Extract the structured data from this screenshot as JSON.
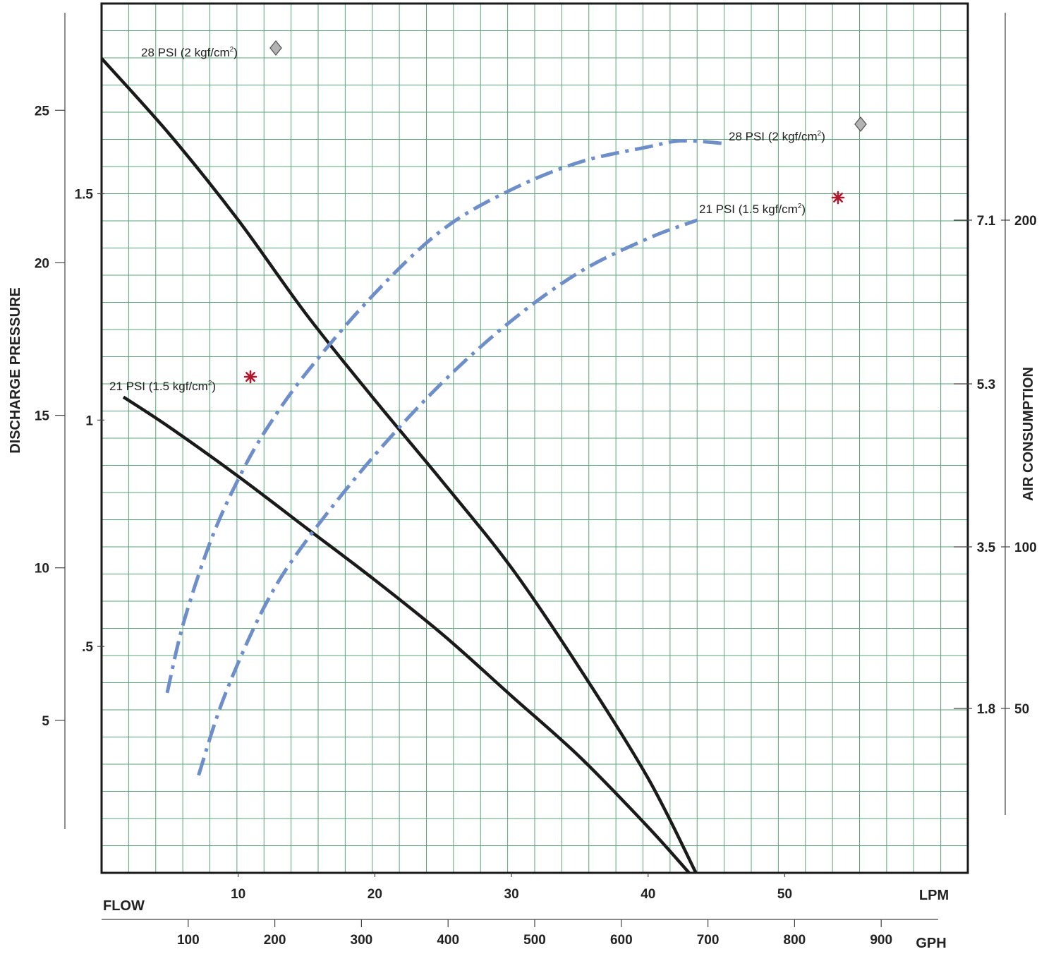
{
  "chart_data": {
    "type": "line",
    "title": "",
    "grid": true,
    "x_axes": {
      "lpm": {
        "label": "LPM",
        "range": [
          0,
          63.4
        ],
        "ticks": [
          10,
          20,
          30,
          40,
          50
        ]
      },
      "gph": {
        "label": "GPH",
        "range": [
          0,
          1000
        ],
        "ticks": [
          100,
          200,
          300,
          400,
          500,
          600,
          700,
          800,
          900
        ]
      },
      "flow_label": "FLOW"
    },
    "y_axes": {
      "left_title": "DISCHARGE PRESSURE",
      "psi": {
        "range": [
          0,
          28.5
        ],
        "ticks": [
          5,
          10,
          15,
          20,
          25
        ]
      },
      "bar": {
        "range": [
          0,
          1.92
        ],
        "ticks": [
          ".5",
          "1",
          "1.5"
        ]
      },
      "right_title": "AIR CONSUMPTION",
      "cfm": {
        "ticks": [
          "1.8",
          "3.5",
          "5.3",
          "7.1"
        ]
      },
      "lpm_air": {
        "ticks": [
          "50",
          "100",
          "200"
        ]
      }
    },
    "series": [
      {
        "kind": "discharge",
        "style": "solid",
        "color": "#1a1a1a",
        "x_lpm": [
          0,
          5,
          10,
          15,
          20,
          25,
          30,
          35,
          40,
          43.5
        ],
        "y_psi": [
          26.7,
          24.2,
          21.4,
          18.3,
          15.5,
          12.8,
          10.0,
          6.7,
          3.1,
          0
        ]
      },
      {
        "kind": "discharge",
        "style": "solid",
        "color": "#1a1a1a",
        "x_lpm": [
          1.6,
          5,
          10,
          15,
          20,
          25,
          30,
          35,
          40,
          43
        ],
        "y_psi": [
          15.6,
          14.6,
          13.0,
          11.3,
          9.6,
          7.8,
          5.8,
          3.8,
          1.5,
          0
        ]
      },
      {
        "kind": "air",
        "style": "dashdot",
        "color": "#6e8ec9",
        "x_lpm": [
          4.8,
          6,
          8,
          10,
          12,
          15,
          20,
          25,
          30,
          35,
          40,
          42.5,
          45.8
        ],
        "y_psi": [
          5.9,
          8.2,
          10.9,
          12.9,
          14.5,
          16.4,
          19.0,
          21.1,
          22.4,
          23.3,
          23.8,
          24.0,
          23.9
        ]
      },
      {
        "kind": "air",
        "style": "dashdot",
        "color": "#6e8ec9",
        "x_lpm": [
          7.1,
          9,
          12,
          15,
          20,
          25,
          30,
          35,
          40,
          43.6
        ],
        "y_psi": [
          3.2,
          5.8,
          8.8,
          10.9,
          13.7,
          16.1,
          18.1,
          19.7,
          20.8,
          21.4
        ]
      }
    ],
    "annotations": [
      {
        "text": "28 PSI  (2 kgf/cm",
        "sup": "2",
        "close": ")",
        "marker": "diamond"
      },
      {
        "text": "28 PSI  (2 kgf/cm",
        "sup": "2",
        "close": ")",
        "marker": "diamond"
      },
      {
        "text": "21 PSI (1.5 kgf/cm",
        "sup": "2",
        "close": ")",
        "marker": "asterisk"
      },
      {
        "text": "21 PSI (1.5 kgf/cm",
        "sup": "2",
        "close": ")",
        "marker": "asterisk"
      }
    ],
    "marker_colors": {
      "diamond_fill": "#b3b3b3",
      "diamond_stroke": "#555555",
      "asterisk": "#b0182e"
    },
    "grid_color": "#5aa57a"
  }
}
